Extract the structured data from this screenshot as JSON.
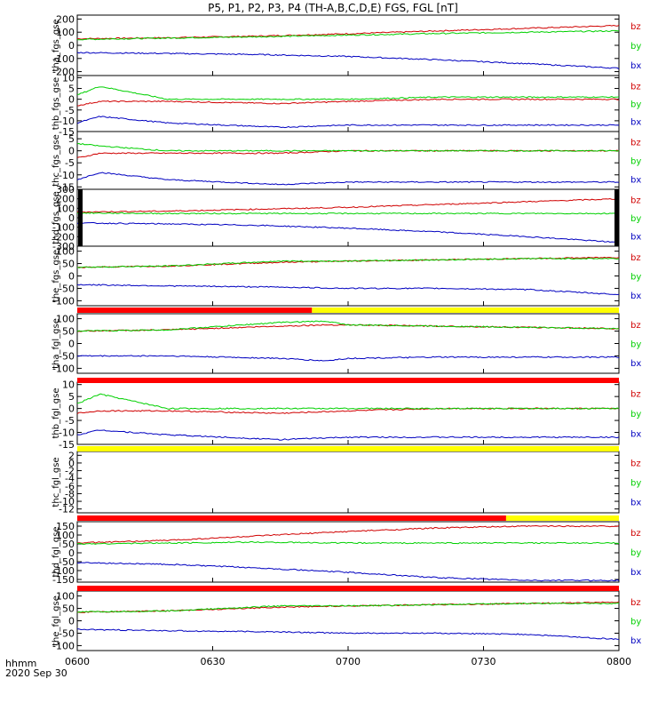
{
  "title": "P5, P1, P2, P3, P4 (TH-A,B,C,D,E) FGS, FGL [nT]",
  "footer": {
    "line1": "hhmm",
    "line2": "2020 Sep 30"
  },
  "colors": {
    "bz": "#d00000",
    "by": "#00d000",
    "bx": "#0000c0",
    "red_bar": "#ff0000",
    "yellow_bar": "#ffff00",
    "black": "#000000"
  },
  "chart_data": [
    {
      "type": "line",
      "ylabel": "tha_fgs_gse",
      "yticks": [
        200,
        100,
        0,
        -100,
        -200
      ],
      "ylim": [
        -230,
        230
      ],
      "x": [
        "0600",
        "0620",
        "0640",
        "0700",
        "0720",
        "0740",
        "0800"
      ],
      "series": [
        {
          "name": "bz",
          "values": [
            50,
            58,
            70,
            88,
            110,
            130,
            150
          ]
        },
        {
          "name": "by",
          "values": [
            45,
            55,
            65,
            78,
            90,
            100,
            110
          ]
        },
        {
          "name": "bx",
          "values": [
            -55,
            -62,
            -70,
            -85,
            -110,
            -140,
            -175
          ]
        }
      ]
    },
    {
      "type": "line",
      "ylabel": "thb_fgs_gse",
      "yticks": [
        10,
        5,
        0,
        -5,
        -10,
        -15
      ],
      "ylim": [
        -15,
        11
      ],
      "x": [
        "0600",
        "0605",
        "0620",
        "0645",
        "0700",
        "0720",
        "0740",
        "0800"
      ],
      "series": [
        {
          "name": "bz",
          "values": [
            -3,
            -1,
            -1,
            -2,
            -1,
            0,
            0,
            0
          ]
        },
        {
          "name": "by",
          "values": [
            2,
            6,
            0,
            0,
            0,
            1,
            1,
            1
          ]
        },
        {
          "name": "bx",
          "values": [
            -11,
            -8,
            -11,
            -13,
            -12,
            -12,
            -12,
            -12
          ]
        }
      ]
    },
    {
      "type": "line",
      "ylabel": "thc_fgs_gse",
      "yticks": [
        5,
        0,
        -5,
        -10,
        -15
      ],
      "ylim": [
        -16,
        8
      ],
      "x": [
        "0600",
        "0605",
        "0620",
        "0645",
        "0700",
        "0720",
        "0740",
        "0800"
      ],
      "series": [
        {
          "name": "bz",
          "values": [
            -3,
            -1,
            -1,
            -1,
            0,
            0,
            0,
            0
          ]
        },
        {
          "name": "by",
          "values": [
            3,
            2,
            0,
            0,
            0,
            0,
            0,
            0
          ]
        },
        {
          "name": "bx",
          "values": [
            -12,
            -9,
            -12,
            -14,
            -13,
            -13,
            -13,
            -13
          ]
        }
      ]
    },
    {
      "type": "line",
      "ylabel": "thd_fgs_gse",
      "yticks": [
        300,
        200,
        100,
        0,
        -100,
        -200,
        -300
      ],
      "ylim": [
        -300,
        300
      ],
      "x": [
        "0600",
        "0620",
        "0640",
        "0700",
        "0720",
        "0740",
        "0800"
      ],
      "series": [
        {
          "name": "bz",
          "values": [
            60,
            70,
            90,
            110,
            140,
            170,
            200
          ]
        },
        {
          "name": "by",
          "values": [
            50,
            45,
            45,
            45,
            45,
            45,
            45
          ]
        },
        {
          "name": "bx",
          "values": [
            -55,
            -65,
            -80,
            -110,
            -150,
            -200,
            -260
          ]
        }
      ]
    },
    {
      "type": "line",
      "ylabel": "the_fgs_gse",
      "yticks": [
        100,
        50,
        0,
        -50,
        -100
      ],
      "ylim": [
        -120,
        120
      ],
      "x": [
        "0600",
        "0620",
        "0645",
        "0700",
        "0720",
        "0740",
        "0800"
      ],
      "series": [
        {
          "name": "bz",
          "values": [
            35,
            40,
            55,
            60,
            65,
            70,
            75
          ]
        },
        {
          "name": "by",
          "values": [
            35,
            40,
            60,
            60,
            65,
            70,
            70
          ]
        },
        {
          "name": "bx",
          "values": [
            -35,
            -40,
            -45,
            -50,
            -50,
            -55,
            -75
          ]
        }
      ]
    },
    {
      "type": "line",
      "ylabel": "tha_fgl_gse",
      "yticks": [
        100,
        50,
        0,
        -50,
        -100
      ],
      "ylim": [
        -120,
        120
      ],
      "x": [
        "0600",
        "0620",
        "0645",
        "0655",
        "0700",
        "0720",
        "0740",
        "0800"
      ],
      "series": [
        {
          "name": "bz",
          "values": [
            50,
            55,
            70,
            75,
            75,
            70,
            65,
            60
          ]
        },
        {
          "name": "by",
          "values": [
            50,
            55,
            85,
            90,
            75,
            70,
            65,
            60
          ]
        },
        {
          "name": "bx",
          "values": [
            -50,
            -50,
            -60,
            -70,
            -60,
            -55,
            -55,
            -55
          ]
        }
      ]
    },
    {
      "type": "line",
      "ylabel": "thb_fgl_gse",
      "yticks": [
        10,
        5,
        0,
        -5,
        -10,
        -15
      ],
      "ylim": [
        -15,
        11
      ],
      "x": [
        "0600",
        "0605",
        "0620",
        "0645",
        "0700",
        "0720",
        "0740",
        "0800"
      ],
      "series": [
        {
          "name": "bz",
          "values": [
            -2,
            -1,
            -1,
            -2,
            -1,
            0,
            0,
            0
          ]
        },
        {
          "name": "by",
          "values": [
            2,
            6,
            0,
            0,
            0,
            0,
            0,
            0
          ]
        },
        {
          "name": "bx",
          "values": [
            -11,
            -9,
            -11,
            -13,
            -12,
            -12,
            -12,
            -12
          ]
        }
      ]
    },
    {
      "type": "line",
      "ylabel": "thc_fgl_gse",
      "yticks": [
        2,
        0,
        -2,
        -4,
        -6,
        -8,
        -10,
        -12
      ],
      "ylim": [
        -13,
        3
      ],
      "series": []
    },
    {
      "type": "line",
      "ylabel": "thd_fgl_gse",
      "yticks": [
        150,
        100,
        50,
        0,
        -50,
        -100,
        -150
      ],
      "ylim": [
        -165,
        175
      ],
      "x": [
        "0600",
        "0620",
        "0640",
        "0700",
        "0720",
        "0740",
        "0800"
      ],
      "series": [
        {
          "name": "bz",
          "values": [
            55,
            70,
            95,
            120,
            140,
            150,
            150
          ]
        },
        {
          "name": "by",
          "values": [
            50,
            55,
            60,
            55,
            55,
            55,
            55
          ]
        },
        {
          "name": "bx",
          "values": [
            -55,
            -65,
            -85,
            -110,
            -140,
            -155,
            -155
          ]
        }
      ]
    },
    {
      "type": "line",
      "ylabel": "the_fgl_gse",
      "yticks": [
        100,
        50,
        0,
        -50,
        -100
      ],
      "ylim": [
        -120,
        120
      ],
      "x": [
        "0600",
        "0620",
        "0645",
        "0700",
        "0720",
        "0740",
        "0800"
      ],
      "series": [
        {
          "name": "bz",
          "values": [
            35,
            40,
            55,
            60,
            65,
            70,
            75
          ]
        },
        {
          "name": "by",
          "values": [
            35,
            40,
            60,
            60,
            65,
            70,
            70
          ]
        },
        {
          "name": "bx",
          "values": [
            -35,
            -40,
            -45,
            -50,
            -50,
            -55,
            -75
          ]
        }
      ]
    }
  ],
  "x_axis": {
    "ticks": [
      "0600",
      "0630",
      "0700",
      "0730",
      "0800"
    ],
    "xlim": [
      "0600",
      "0800"
    ]
  },
  "legend_labels": [
    "bz",
    "by",
    "bx"
  ],
  "mode_bars": [
    {
      "segments": [
        {
          "from": "0600",
          "to": "0652",
          "color": "red"
        },
        {
          "from": "0652",
          "to": "0800",
          "color": "yellow"
        }
      ]
    },
    {
      "segments": [
        {
          "from": "0600",
          "to": "0800",
          "color": "red"
        }
      ]
    },
    {
      "segments": [
        {
          "from": "0600",
          "to": "0800",
          "color": "yellow"
        }
      ]
    },
    {
      "segments": [
        {
          "from": "0600",
          "to": "0735",
          "color": "red"
        },
        {
          "from": "0735",
          "to": "0800",
          "color": "yellow"
        }
      ]
    },
    {
      "segments": [
        {
          "from": "0600",
          "to": "0800",
          "color": "red"
        }
      ]
    }
  ]
}
